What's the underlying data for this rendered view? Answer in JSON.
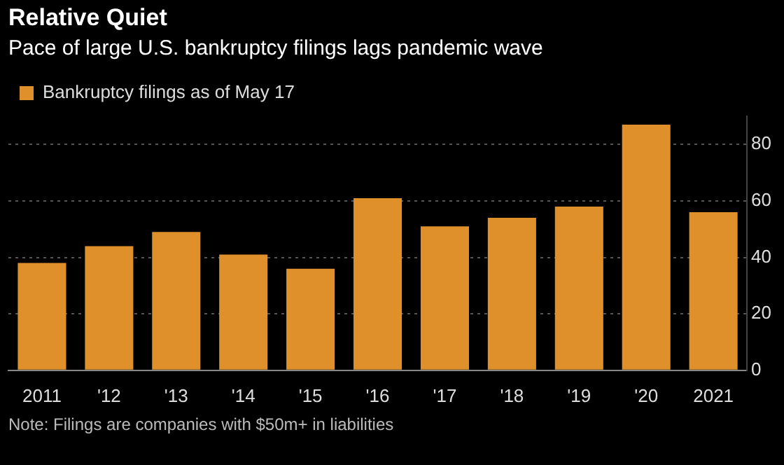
{
  "chart_data": {
    "type": "bar",
    "title": "Relative Quiet",
    "subtitle": "Pace of large U.S. bankruptcy filings lags pandemic wave",
    "categories": [
      "2011",
      "'12",
      "'13",
      "'14",
      "'15",
      "'16",
      "'17",
      "'18",
      "'19",
      "'20",
      "2021"
    ],
    "series": [
      {
        "name": "Bankruptcy filings as of May 17",
        "color": "#e0902a",
        "values": [
          38,
          44,
          49,
          41,
          36,
          61,
          51,
          54,
          58,
          87,
          56
        ]
      }
    ],
    "ylim": [
      0,
      90
    ],
    "yticks": [
      0,
      20,
      40,
      60,
      80
    ],
    "grid": "y",
    "legend": "top left",
    "annotations": [
      "Note: Filings are companies with $50m+ in liabilities"
    ]
  }
}
